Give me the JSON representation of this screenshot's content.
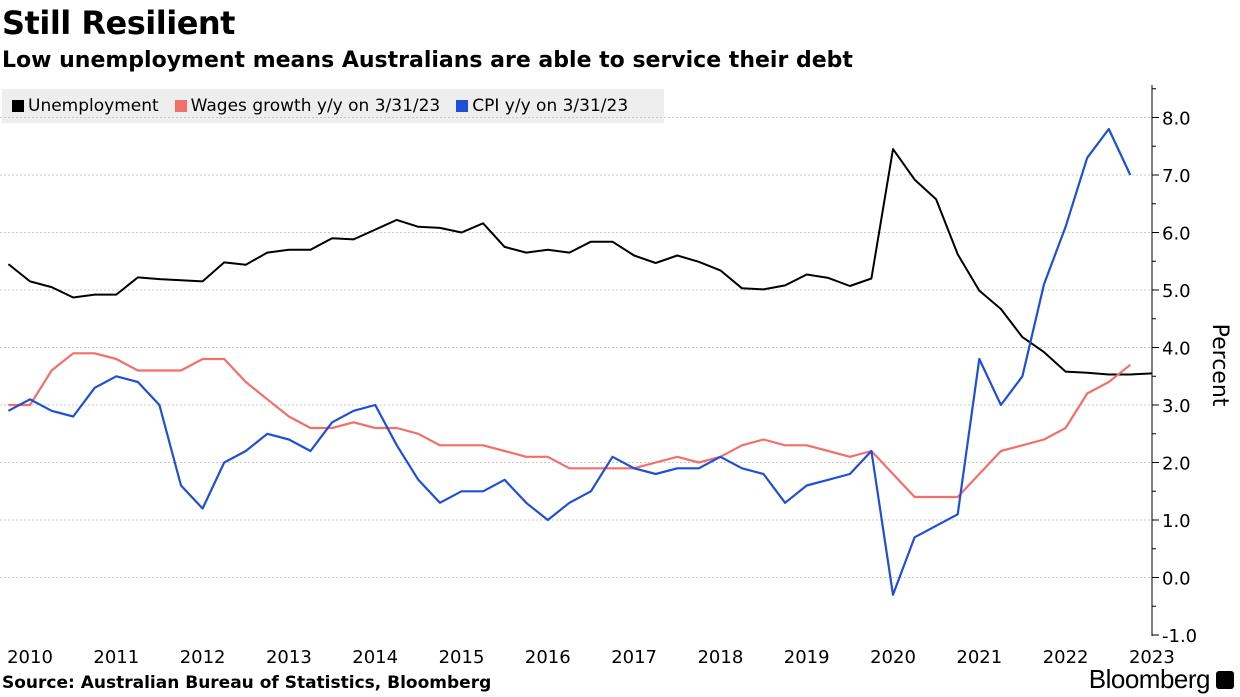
{
  "title": "Still Resilient",
  "subtitle": "Low unemployment means Australians are able to service their debt",
  "source": "Source: Australian Bureau of Statistics, Bloomberg",
  "brand": "Bloomberg",
  "legend": [
    {
      "label": "Unemployment",
      "color": "#000000"
    },
    {
      "label": "Wages growth y/y on 3/31/23",
      "color": "#f0706a"
    },
    {
      "label": "CPI y/y on 3/31/23",
      "color": "#1f4fd8"
    }
  ],
  "chart_data": {
    "type": "line",
    "ylabel": "Percent",
    "ylim": [
      -1.0,
      8.5
    ],
    "yticks": [
      "8.0",
      "7.0",
      "6.0",
      "5.0",
      "4.0",
      "3.0",
      "2.0",
      "1.0",
      "0.0",
      "-1.0"
    ],
    "ytick_values": [
      8,
      7,
      6,
      5,
      4,
      3,
      2,
      1,
      0,
      -1
    ],
    "xticks": [
      "2010",
      "2011",
      "2012",
      "2013",
      "2014",
      "2015",
      "2016",
      "2017",
      "2018",
      "2019",
      "2020",
      "2021",
      "2022",
      "2023"
    ],
    "xtick_values": [
      2010,
      2011,
      2012,
      2013,
      2014,
      2015,
      2016,
      2017,
      2018,
      2019,
      2020,
      2021,
      2022,
      2023
    ],
    "grid": true,
    "legend_position": "top-left",
    "series": [
      {
        "name": "Unemployment",
        "color": "#000000",
        "x": [
          2009.75,
          2010.0,
          2010.25,
          2010.5,
          2010.75,
          2011.0,
          2011.25,
          2011.5,
          2011.75,
          2012.0,
          2012.25,
          2012.5,
          2012.75,
          2013.0,
          2013.25,
          2013.5,
          2013.75,
          2014.0,
          2014.25,
          2014.5,
          2014.75,
          2015.0,
          2015.25,
          2015.5,
          2015.75,
          2016.0,
          2016.25,
          2016.5,
          2016.75,
          2017.0,
          2017.25,
          2017.5,
          2017.75,
          2018.0,
          2018.25,
          2018.5,
          2018.75,
          2019.0,
          2019.25,
          2019.5,
          2019.75,
          2020.0,
          2020.25,
          2020.5,
          2020.75,
          2021.0,
          2021.25,
          2021.5,
          2021.75,
          2022.0,
          2022.25,
          2022.5,
          2022.75,
          2023.0
        ],
        "values": [
          5.45,
          5.15,
          5.05,
          4.87,
          4.92,
          4.92,
          5.22,
          5.19,
          5.17,
          5.15,
          5.48,
          5.44,
          5.65,
          5.7,
          5.7,
          5.9,
          5.88,
          6.05,
          6.22,
          6.1,
          6.08,
          6.0,
          6.16,
          5.75,
          5.65,
          5.7,
          5.65,
          5.84,
          5.84,
          5.6,
          5.47,
          5.6,
          5.49,
          5.34,
          5.03,
          5.01,
          5.08,
          5.27,
          5.21,
          5.07,
          5.2,
          7.45,
          6.92,
          6.58,
          5.62,
          4.99,
          4.67,
          4.18,
          3.92,
          3.58,
          3.56,
          3.53,
          3.53,
          3.55
        ]
      },
      {
        "name": "Wages growth y/y on 3/31/23",
        "color": "#f0706a",
        "x": [
          2009.75,
          2010.0,
          2010.25,
          2010.5,
          2010.75,
          2011.0,
          2011.25,
          2011.5,
          2011.75,
          2012.0,
          2012.25,
          2012.5,
          2012.75,
          2013.0,
          2013.25,
          2013.5,
          2013.75,
          2014.0,
          2014.25,
          2014.5,
          2014.75,
          2015.0,
          2015.25,
          2015.5,
          2015.75,
          2016.0,
          2016.25,
          2016.5,
          2016.75,
          2017.0,
          2017.25,
          2017.5,
          2017.75,
          2018.0,
          2018.25,
          2018.5,
          2018.75,
          2019.0,
          2019.25,
          2019.5,
          2019.75,
          2020.0,
          2020.25,
          2020.5,
          2020.75,
          2021.0,
          2021.25,
          2021.5,
          2021.75,
          2022.0,
          2022.25,
          2022.5,
          2022.75
        ],
        "values": [
          3.0,
          3.0,
          3.6,
          3.9,
          3.9,
          3.8,
          3.6,
          3.6,
          3.6,
          3.8,
          3.8,
          3.4,
          3.1,
          2.8,
          2.6,
          2.6,
          2.7,
          2.6,
          2.6,
          2.5,
          2.3,
          2.3,
          2.3,
          2.2,
          2.1,
          2.1,
          1.9,
          1.9,
          1.9,
          1.9,
          2.0,
          2.1,
          2.0,
          2.1,
          2.3,
          2.4,
          2.3,
          2.3,
          2.2,
          2.1,
          2.2,
          1.8,
          1.4,
          1.4,
          1.4,
          1.8,
          2.2,
          2.3,
          2.4,
          2.6,
          3.2,
          3.4,
          3.7
        ]
      },
      {
        "name": "CPI y/y on 3/31/23",
        "color": "#1f4fd8",
        "x": [
          2009.75,
          2010.0,
          2010.25,
          2010.5,
          2010.75,
          2011.0,
          2011.25,
          2011.5,
          2011.75,
          2012.0,
          2012.25,
          2012.5,
          2012.75,
          2013.0,
          2013.25,
          2013.5,
          2013.75,
          2014.0,
          2014.25,
          2014.5,
          2014.75,
          2015.0,
          2015.25,
          2015.5,
          2015.75,
          2016.0,
          2016.25,
          2016.5,
          2016.75,
          2017.0,
          2017.25,
          2017.5,
          2017.75,
          2018.0,
          2018.25,
          2018.5,
          2018.75,
          2019.0,
          2019.25,
          2019.5,
          2019.75,
          2020.0,
          2020.25,
          2020.5,
          2020.75,
          2021.0,
          2021.25,
          2021.5,
          2021.75,
          2022.0,
          2022.25,
          2022.5,
          2022.75
        ],
        "values": [
          2.9,
          3.1,
          2.9,
          2.8,
          3.3,
          3.5,
          3.4,
          3.0,
          1.6,
          1.2,
          2.0,
          2.2,
          2.5,
          2.4,
          2.2,
          2.7,
          2.9,
          3.0,
          2.3,
          1.7,
          1.3,
          1.5,
          1.5,
          1.7,
          1.3,
          1.0,
          1.3,
          1.5,
          2.1,
          1.9,
          1.8,
          1.9,
          1.9,
          2.1,
          1.9,
          1.8,
          1.3,
          1.6,
          1.7,
          1.8,
          2.2,
          -0.3,
          0.7,
          0.9,
          1.1,
          3.8,
          3.0,
          3.5,
          5.1,
          6.1,
          7.3,
          7.8,
          7.0
        ]
      }
    ]
  }
}
